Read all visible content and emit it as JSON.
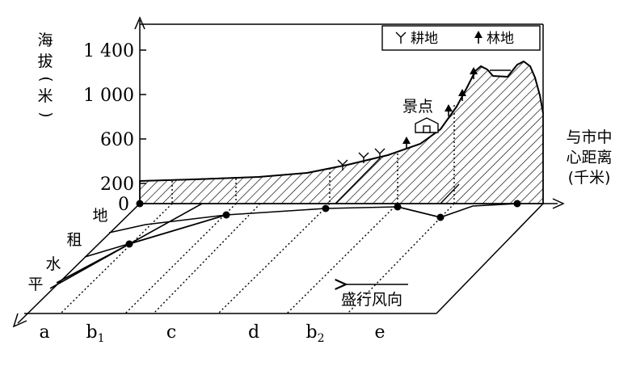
{
  "y_axis": {
    "label": [
      "海",
      "拔",
      "(",
      "米",
      ")"
    ],
    "ticks": [
      "1 400",
      "1 000",
      "600",
      "200",
      "0"
    ]
  },
  "x_axis": {
    "label_line1": "与市中",
    "label_line2": "心距离",
    "label_line3": "(千米)"
  },
  "legend": {
    "items": [
      {
        "icon": "farmland-icon",
        "label": "耕地"
      },
      {
        "icon": "forest-icon",
        "label": "林地"
      }
    ]
  },
  "annotations": {
    "scenic_spot": "景点",
    "wind": "盛行风向",
    "plain": [
      "地",
      "租",
      "水",
      "平"
    ]
  },
  "zones": [
    {
      "label": "a",
      "sub": ""
    },
    {
      "label": "b",
      "sub": "1"
    },
    {
      "label": "c",
      "sub": ""
    },
    {
      "label": "d",
      "sub": ""
    },
    {
      "label": "b",
      "sub": "2"
    },
    {
      "label": "e",
      "sub": ""
    }
  ]
}
